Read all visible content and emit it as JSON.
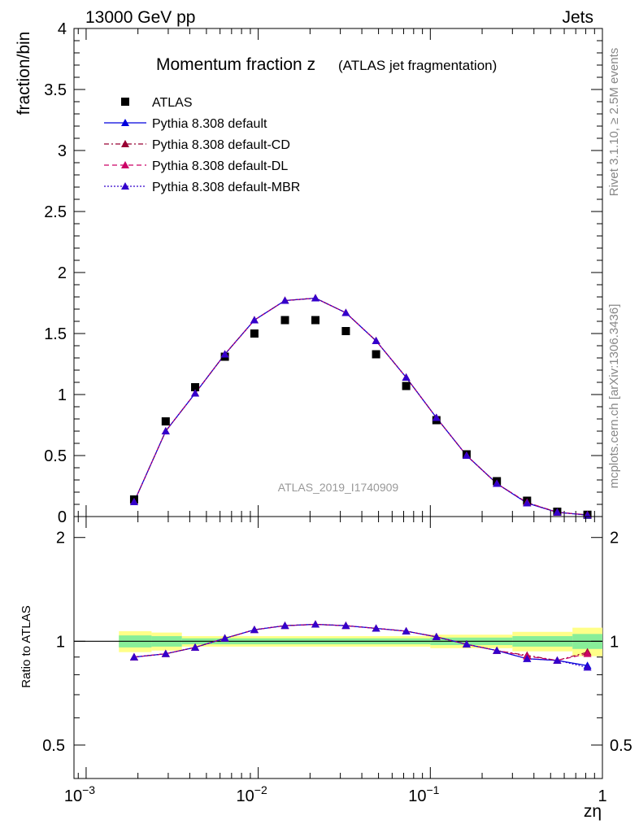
{
  "header": {
    "left": "13000 GeV pp",
    "right": "Jets"
  },
  "side_labels": {
    "top": "Rivet 3.1.10, ≥ 2.5M events",
    "bottom": "mcplots.cern.ch [arXiv:1306.3436]"
  },
  "chart_data": [
    {
      "type": "scatter",
      "title": "Momentum fraction z",
      "subtitle": "(ATLAS jet fragmentation)",
      "xlabel": "zη",
      "ylabel": "fraction/bin",
      "xscale": "log",
      "xlim": [
        0.00085,
        1.0
      ],
      "ylim": [
        0,
        4
      ],
      "yticks": [
        "0",
        "0.5",
        "1",
        "1.5",
        "2",
        "2.5",
        "3",
        "3.5",
        "4"
      ],
      "xtick_labels": [
        "10^-3",
        "10^-2",
        "10^-1",
        "1"
      ],
      "watermark": "ATLAS_2019_I1740909",
      "legend_position": "top-left",
      "x": [
        0.0019,
        0.0029,
        0.0043,
        0.0064,
        0.0095,
        0.0143,
        0.0215,
        0.0323,
        0.0484,
        0.0724,
        0.1085,
        0.1625,
        0.2436,
        0.3649,
        0.5464,
        0.8184
      ],
      "series": [
        {
          "name": "ATLAS",
          "color": "#000000",
          "marker": "square",
          "values": [
            0.14,
            0.78,
            1.06,
            1.31,
            1.5,
            1.61,
            1.61,
            1.52,
            1.33,
            1.07,
            0.79,
            0.51,
            0.29,
            0.13,
            0.04,
            0.015
          ]
        },
        {
          "name": "Pythia 8.308 default",
          "color": "#0000dd",
          "dash": "",
          "marker": "triangle",
          "values": [
            0.12,
            0.7,
            1.01,
            1.33,
            1.61,
            1.77,
            1.79,
            1.67,
            1.44,
            1.14,
            0.81,
            0.5,
            0.27,
            0.11,
            0.035,
            0.012
          ]
        },
        {
          "name": "Pythia 8.308 default-CD",
          "color": "#990033",
          "dash": "6,3,2,3",
          "marker": "triangle",
          "values": [
            0.12,
            0.7,
            1.01,
            1.33,
            1.61,
            1.77,
            1.79,
            1.67,
            1.44,
            1.14,
            0.81,
            0.5,
            0.27,
            0.115,
            0.035,
            0.014
          ]
        },
        {
          "name": "Pythia 8.308 default-DL",
          "color": "#cc0066",
          "dash": "6,4",
          "marker": "triangle",
          "values": [
            0.12,
            0.7,
            1.01,
            1.33,
            1.61,
            1.77,
            1.79,
            1.67,
            1.44,
            1.14,
            0.81,
            0.5,
            0.27,
            0.115,
            0.035,
            0.014
          ]
        },
        {
          "name": "Pythia 8.308 default-MBR",
          "color": "#3300cc",
          "dash": "2,2",
          "marker": "triangle",
          "values": [
            0.12,
            0.7,
            1.01,
            1.33,
            1.61,
            1.77,
            1.79,
            1.67,
            1.44,
            1.14,
            0.81,
            0.5,
            0.27,
            0.11,
            0.035,
            0.012
          ]
        }
      ]
    },
    {
      "type": "scatter",
      "ylabel": "Ratio to ATLAS",
      "xscale": "log",
      "xlim": [
        0.00085,
        1.0
      ],
      "ylim": [
        0.4,
        2.3
      ],
      "yticks": [
        "0.5",
        "1",
        "2"
      ],
      "band_inner": [
        {
          "x0": 0.00155,
          "x1": 0.0024,
          "lo": 0.96,
          "hi": 1.04
        },
        {
          "x0": 0.0024,
          "x1": 0.0036,
          "lo": 0.965,
          "hi": 1.035
        },
        {
          "x0": 0.0036,
          "x1": 0.1,
          "lo": 0.98,
          "hi": 1.02
        },
        {
          "x0": 0.1,
          "x1": 0.3,
          "lo": 0.975,
          "hi": 1.025
        },
        {
          "x0": 0.3,
          "x1": 0.67,
          "lo": 0.965,
          "hi": 1.035
        },
        {
          "x0": 0.67,
          "x1": 1.0,
          "lo": 0.95,
          "hi": 1.05
        }
      ],
      "band_outer": [
        {
          "x0": 0.00155,
          "x1": 0.0024,
          "lo": 0.93,
          "hi": 1.07
        },
        {
          "x0": 0.0024,
          "x1": 0.0036,
          "lo": 0.94,
          "hi": 1.06
        },
        {
          "x0": 0.0036,
          "x1": 0.1,
          "lo": 0.965,
          "hi": 1.035
        },
        {
          "x0": 0.1,
          "x1": 0.3,
          "lo": 0.955,
          "hi": 1.045
        },
        {
          "x0": 0.3,
          "x1": 0.67,
          "lo": 0.935,
          "hi": 1.065
        },
        {
          "x0": 0.67,
          "x1": 1.0,
          "lo": 0.905,
          "hi": 1.095
        }
      ],
      "x": [
        0.0019,
        0.0029,
        0.0043,
        0.0064,
        0.0095,
        0.0143,
        0.0215,
        0.0323,
        0.0484,
        0.0724,
        0.1085,
        0.1625,
        0.2436,
        0.3649,
        0.5464,
        0.8184
      ],
      "series": [
        {
          "name": "Pythia 8.308 default",
          "color": "#0000dd",
          "dash": "",
          "values": [
            0.9,
            0.92,
            0.96,
            1.02,
            1.08,
            1.11,
            1.12,
            1.11,
            1.09,
            1.07,
            1.03,
            0.98,
            0.94,
            0.89,
            0.88,
            0.85
          ]
        },
        {
          "name": "Pythia 8.308 default-CD",
          "color": "#990033",
          "dash": "6,3,2,3",
          "values": [
            0.9,
            0.92,
            0.96,
            1.02,
            1.08,
            1.11,
            1.12,
            1.11,
            1.09,
            1.07,
            1.03,
            0.98,
            0.94,
            0.91,
            0.88,
            0.93
          ]
        },
        {
          "name": "Pythia 8.308 default-DL",
          "color": "#cc0066",
          "dash": "6,4",
          "values": [
            0.9,
            0.92,
            0.96,
            1.02,
            1.08,
            1.11,
            1.12,
            1.11,
            1.09,
            1.07,
            1.03,
            0.98,
            0.94,
            0.905,
            0.88,
            0.92
          ]
        },
        {
          "name": "Pythia 8.308 default-MBR",
          "color": "#3300cc",
          "dash": "2,2",
          "values": [
            0.9,
            0.92,
            0.96,
            1.02,
            1.08,
            1.11,
            1.12,
            1.11,
            1.09,
            1.07,
            1.03,
            0.98,
            0.94,
            0.89,
            0.88,
            0.84
          ]
        }
      ]
    }
  ]
}
